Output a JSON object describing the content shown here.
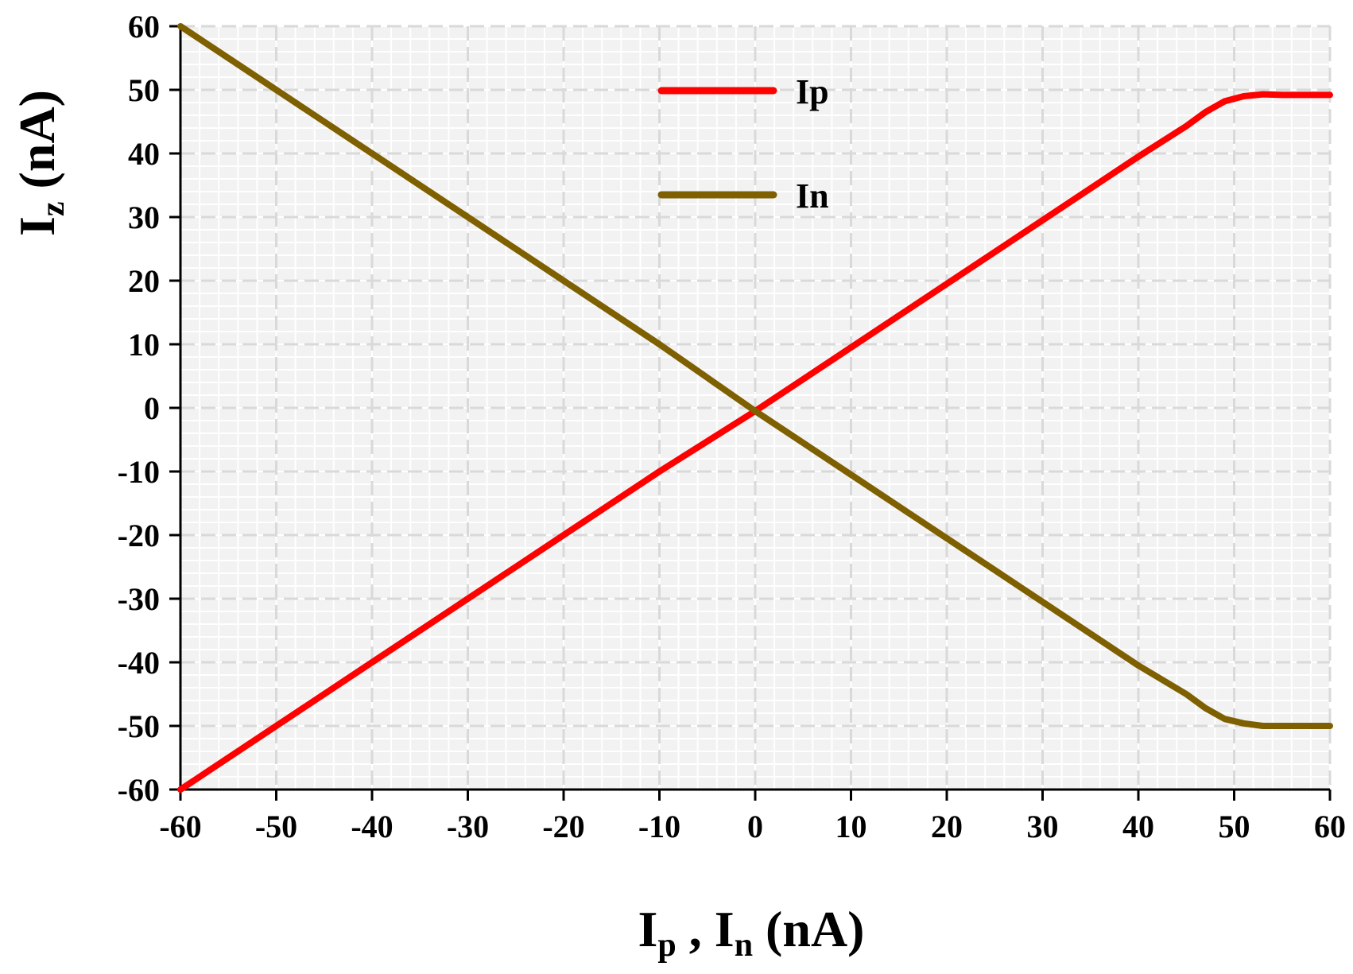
{
  "chart_data": {
    "type": "line",
    "title": "",
    "xlabel": {
      "parts": [
        {
          "text": "I",
          "sub": false
        },
        {
          "text": "p",
          "sub": true
        },
        {
          "text": " , ",
          "sub": false
        },
        {
          "text": "I",
          "sub": false
        },
        {
          "text": "n",
          "sub": true
        },
        {
          "text": " (nA)",
          "sub": false
        }
      ]
    },
    "ylabel": {
      "parts": [
        {
          "text": "I",
          "sub": false
        },
        {
          "text": "z",
          "sub": true
        },
        {
          "text": " (nA)",
          "sub": false
        }
      ]
    },
    "xlim": [
      -60,
      60
    ],
    "ylim": [
      -60,
      60
    ],
    "x_ticks": [
      -60,
      -50,
      -40,
      -30,
      -20,
      -10,
      0,
      10,
      20,
      30,
      40,
      50,
      60
    ],
    "y_ticks": [
      -60,
      -50,
      -40,
      -30,
      -20,
      -10,
      0,
      10,
      20,
      30,
      40,
      50,
      60
    ],
    "x_tick_labels": [
      "-60",
      "-50",
      "-40",
      "-30",
      "-20",
      "-10",
      "0",
      "10",
      "20",
      "30",
      "40",
      "50",
      "60"
    ],
    "y_tick_labels": [
      "-60",
      "-50",
      "-40",
      "-30",
      "-20",
      "-10",
      "0",
      "10",
      "20",
      "30",
      "40",
      "50",
      "60"
    ],
    "grid": true,
    "legend_position": "top-center",
    "plot_background": "#f2f2f2",
    "grid_color": "#d9d9d9",
    "series": [
      {
        "name": "Ip",
        "color": "#ff0000",
        "points": [
          [
            -60,
            -60
          ],
          [
            -50,
            -50
          ],
          [
            -40,
            -40
          ],
          [
            -30,
            -30
          ],
          [
            -20,
            -20
          ],
          [
            -10,
            -10
          ],
          [
            0,
            -0.5
          ],
          [
            10,
            9.5
          ],
          [
            20,
            19.5
          ],
          [
            30,
            29.5
          ],
          [
            40,
            39.5
          ],
          [
            45,
            44.3
          ],
          [
            47,
            46.5
          ],
          [
            49,
            48.2
          ],
          [
            51,
            49
          ],
          [
            53,
            49.3
          ],
          [
            55,
            49.2
          ],
          [
            60,
            49.2
          ]
        ]
      },
      {
        "name": "In",
        "color": "#7f6000",
        "points": [
          [
            -60,
            60
          ],
          [
            -50,
            50
          ],
          [
            -40,
            40
          ],
          [
            -30,
            30
          ],
          [
            -20,
            20
          ],
          [
            -10,
            10
          ],
          [
            0,
            -0.5
          ],
          [
            10,
            -10.5
          ],
          [
            20,
            -20.5
          ],
          [
            30,
            -30.5
          ],
          [
            40,
            -40.5
          ],
          [
            45,
            -45
          ],
          [
            47,
            -47.2
          ],
          [
            49,
            -48.9
          ],
          [
            51,
            -49.6
          ],
          [
            53,
            -50
          ],
          [
            55,
            -50
          ],
          [
            60,
            -50
          ]
        ]
      }
    ]
  }
}
